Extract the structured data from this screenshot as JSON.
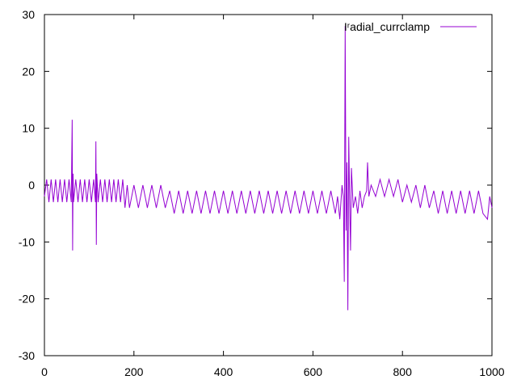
{
  "chart_data": {
    "type": "line",
    "title": "",
    "xlabel": "",
    "ylabel": "",
    "xlim": [
      0,
      1000
    ],
    "ylim": [
      -30,
      30
    ],
    "x_ticks": [
      0,
      200,
      400,
      600,
      800,
      1000
    ],
    "y_ticks": [
      -30,
      -20,
      -10,
      0,
      10,
      20,
      30
    ],
    "x_tick_labels": [
      "0",
      "200",
      "400",
      "600",
      "800",
      "1000"
    ],
    "y_tick_labels": [
      "-30",
      "-20",
      "-10",
      "0",
      "10",
      "20",
      "30"
    ],
    "grid": false,
    "legend_position": "top-right",
    "series": [
      {
        "name": "Iʳadial_currclamp",
        "color": "#9400d3",
        "x": [
          0,
          5,
          10,
          15,
          20,
          25,
          30,
          35,
          40,
          45,
          50,
          55,
          60,
          62,
          63,
          64,
          65,
          70,
          75,
          80,
          85,
          90,
          95,
          100,
          105,
          110,
          114,
          115,
          116,
          117,
          120,
          125,
          130,
          135,
          140,
          145,
          150,
          155,
          160,
          165,
          170,
          175,
          180,
          185,
          190,
          200,
          210,
          220,
          230,
          240,
          250,
          260,
          270,
          280,
          290,
          300,
          310,
          320,
          330,
          340,
          350,
          360,
          370,
          380,
          390,
          400,
          410,
          420,
          430,
          440,
          450,
          460,
          470,
          480,
          490,
          500,
          510,
          520,
          530,
          540,
          550,
          560,
          570,
          580,
          590,
          600,
          610,
          620,
          630,
          640,
          650,
          655,
          660,
          665,
          668,
          670,
          672,
          674,
          676,
          678,
          680,
          682,
          684,
          686,
          690,
          695,
          700,
          705,
          710,
          715,
          720,
          722,
          725,
          730,
          740,
          750,
          760,
          770,
          780,
          790,
          800,
          810,
          820,
          830,
          840,
          850,
          860,
          870,
          880,
          890,
          900,
          910,
          920,
          930,
          940,
          950,
          960,
          970,
          980,
          990,
          995,
          1000
        ],
        "y": [
          -2,
          1,
          -3,
          1,
          -3,
          1,
          -3,
          1,
          -3,
          1,
          -3,
          1,
          -3,
          11.5,
          -11.5,
          2,
          -3,
          1,
          -3,
          1,
          -3,
          1,
          -3,
          1,
          -3,
          1,
          -3,
          7.7,
          -10.5,
          2,
          -3,
          1,
          -3,
          1,
          -3,
          1,
          -3,
          1,
          -3,
          1,
          -3,
          1,
          -4,
          0,
          -4,
          0,
          -4,
          0,
          -4,
          0,
          -4,
          0,
          -4,
          -1,
          -5,
          -1,
          -5,
          -1,
          -5,
          -1,
          -5,
          -1,
          -5,
          -1,
          -5,
          -1,
          -5,
          -1,
          -5,
          -1,
          -5,
          -1,
          -5,
          -1,
          -5,
          -1,
          -5,
          -1,
          -5,
          -1,
          -5,
          -1,
          -5,
          -1,
          -5,
          -1,
          -5,
          -1,
          -5,
          -1,
          -5,
          -2,
          -6,
          0,
          -2,
          -17,
          28,
          -8,
          4,
          -22,
          8.5,
          -3,
          -11.5,
          3,
          -4,
          -2,
          -5,
          -1,
          -4,
          -2,
          -1,
          4,
          -2,
          0,
          -2,
          1,
          -2,
          1,
          -2,
          1,
          -3,
          0,
          -3,
          0,
          -4,
          0,
          -4,
          -1,
          -5,
          -1,
          -5,
          -1,
          -5,
          -1,
          -5,
          -1,
          -5,
          -1,
          -5,
          -6,
          -2,
          -4
        ]
      }
    ]
  }
}
